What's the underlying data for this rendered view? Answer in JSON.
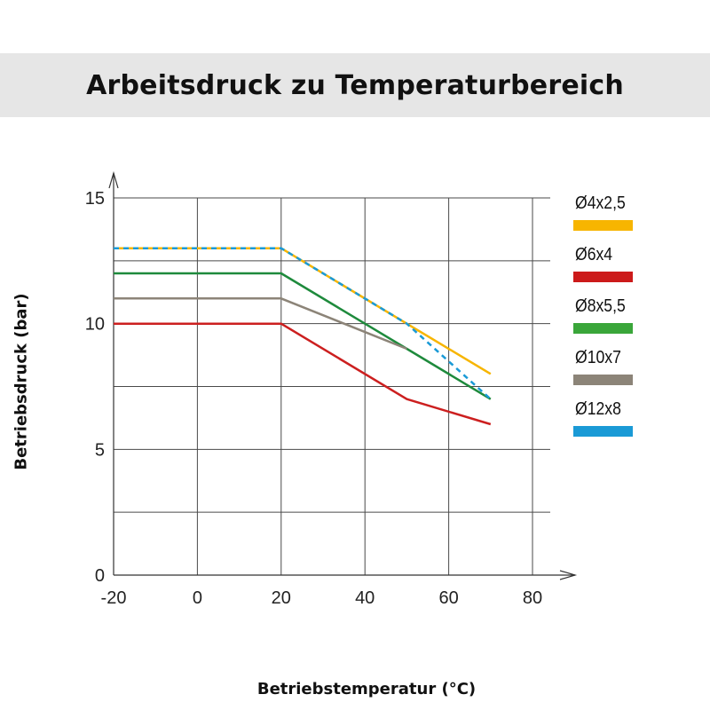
{
  "chart_data": {
    "type": "line",
    "title": "Arbeitsdruck zu Temperaturbereich",
    "xlabel": "Betriebstemperatur (°C)",
    "ylabel": "Betriebsdruck (bar)",
    "xlim": [
      -20,
      80
    ],
    "ylim": [
      0,
      15
    ],
    "x_ticks": [
      -20,
      0,
      20,
      40,
      60,
      80
    ],
    "y_ticks": [
      0,
      5,
      10,
      15
    ],
    "grid": true,
    "legend_position": "right",
    "series": [
      {
        "name": "Ø4x2,5",
        "color": "#f7b500",
        "x": [
          -20,
          20,
          50,
          70
        ],
        "y": [
          13,
          13,
          10,
          8
        ]
      },
      {
        "name": "Ø6x4",
        "color": "#cc1f1f",
        "x": [
          -20,
          20,
          50,
          70
        ],
        "y": [
          10,
          10,
          7,
          6
        ]
      },
      {
        "name": "Ø8x5,5",
        "color": "#1e8a3c",
        "x": [
          -20,
          20,
          50,
          70
        ],
        "y": [
          12,
          12,
          9,
          7
        ]
      },
      {
        "name": "Ø10x7",
        "color": "#8c8478",
        "x": [
          -20,
          20,
          50
        ],
        "y": [
          11,
          11,
          9
        ]
      },
      {
        "name": "Ø12x8",
        "color": "#1a9ad6",
        "x": [
          -20,
          20,
          50,
          70
        ],
        "y": [
          13,
          13,
          10,
          7
        ],
        "dashed": true
      }
    ]
  },
  "legend_swatch_colors": {
    "Ø4x2,5": "#f7b500",
    "Ø6x4": "#cc1a1a",
    "Ø8x5,5": "#3aa63a",
    "Ø10x7": "#8c8478",
    "Ø12x8": "#1a9ad6"
  }
}
